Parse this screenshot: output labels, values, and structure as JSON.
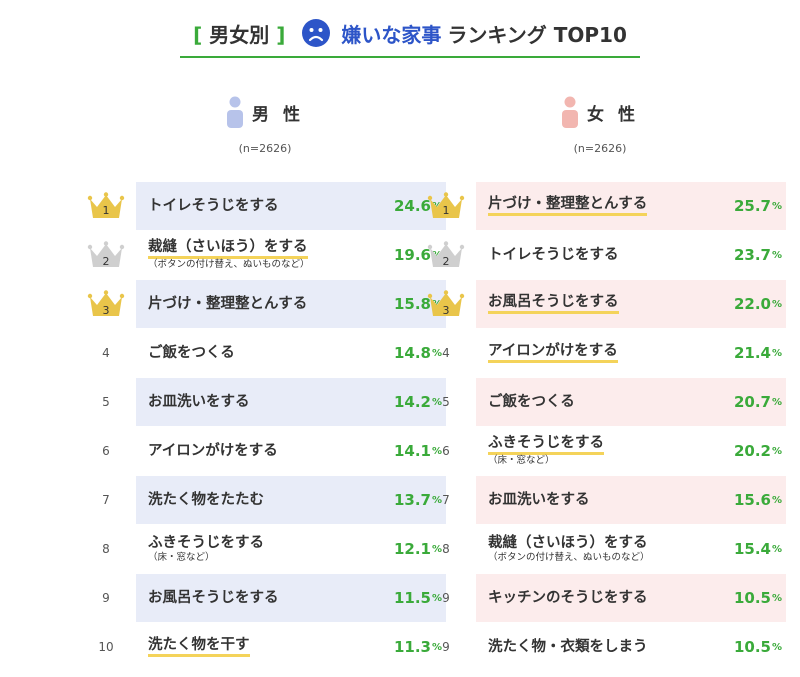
{
  "title": {
    "tag": "男女別",
    "bracket_open": "[",
    "bracket_close": "]",
    "strong": "嫌いな家事",
    "rest": "ランキング TOP10"
  },
  "colors": {
    "green": "#3aaa3a",
    "male_icon": "#b7c3ea",
    "female_icon": "#f2b6b0",
    "male_shade": "#e8ecf8",
    "female_shade": "#fcecec",
    "gold": "#e9c54a",
    "silver": "#cfcfcf",
    "highlight": "#f4d35a",
    "title_blue": "#2d55c8"
  },
  "chart_data": [
    {
      "type": "table",
      "gender": "男 性",
      "sample": "(n=2626)",
      "unit": "%",
      "rows": [
        {
          "rank": "1",
          "label": "トイレそうじをする",
          "sub": "",
          "value": 24.6,
          "medal": "gold",
          "shaded": true,
          "underline": false
        },
        {
          "rank": "2",
          "label": "裁縫（さいほう）をする",
          "sub": "（ボタンの付け替え、ぬいものなど）",
          "value": 19.6,
          "medal": "silver",
          "shaded": false,
          "underline": true
        },
        {
          "rank": "3",
          "label": "片づけ・整理整とんする",
          "sub": "",
          "value": 15.8,
          "medal": "bronze",
          "shaded": true,
          "underline": false
        },
        {
          "rank": "4",
          "label": "ご飯をつくる",
          "sub": "",
          "value": 14.8,
          "medal": "",
          "shaded": false,
          "underline": false
        },
        {
          "rank": "5",
          "label": "お皿洗いをする",
          "sub": "",
          "value": 14.2,
          "medal": "",
          "shaded": true,
          "underline": false
        },
        {
          "rank": "6",
          "label": "アイロンがけをする",
          "sub": "",
          "value": 14.1,
          "medal": "",
          "shaded": false,
          "underline": false
        },
        {
          "rank": "7",
          "label": "洗たく物をたたむ",
          "sub": "",
          "value": 13.7,
          "medal": "",
          "shaded": true,
          "underline": false
        },
        {
          "rank": "8",
          "label": "ふきそうじをする",
          "sub": "（床・窓など）",
          "value": 12.1,
          "medal": "",
          "shaded": false,
          "underline": false
        },
        {
          "rank": "9",
          "label": "お風呂そうじをする",
          "sub": "",
          "value": 11.5,
          "medal": "",
          "shaded": true,
          "underline": false
        },
        {
          "rank": "10",
          "label": "洗たく物を干す",
          "sub": "",
          "value": 11.3,
          "medal": "",
          "shaded": false,
          "underline": true
        }
      ]
    },
    {
      "type": "table",
      "gender": "女 性",
      "sample": "(n=2626)",
      "unit": "%",
      "rows": [
        {
          "rank": "1",
          "label": "片づけ・整理整とんする",
          "sub": "",
          "value": 25.7,
          "medal": "gold",
          "shaded": true,
          "underline": true
        },
        {
          "rank": "2",
          "label": "トイレそうじをする",
          "sub": "",
          "value": 23.7,
          "medal": "silver",
          "shaded": false,
          "underline": false
        },
        {
          "rank": "3",
          "label": "お風呂そうじをする",
          "sub": "",
          "value": 22.0,
          "medal": "bronze",
          "shaded": true,
          "underline": true
        },
        {
          "rank": "4",
          "label": "アイロンがけをする",
          "sub": "",
          "value": 21.4,
          "medal": "",
          "shaded": false,
          "underline": true
        },
        {
          "rank": "5",
          "label": "ご飯をつくる",
          "sub": "",
          "value": 20.7,
          "medal": "",
          "shaded": true,
          "underline": false
        },
        {
          "rank": "6",
          "label": "ふきそうじをする",
          "sub": "（床・窓など）",
          "value": 20.2,
          "medal": "",
          "shaded": false,
          "underline": true
        },
        {
          "rank": "7",
          "label": "お皿洗いをする",
          "sub": "",
          "value": 15.6,
          "medal": "",
          "shaded": true,
          "underline": false
        },
        {
          "rank": "8",
          "label": "裁縫（さいほう）をする",
          "sub": "（ボタンの付け替え、ぬいものなど）",
          "value": 15.4,
          "medal": "",
          "shaded": false,
          "underline": false
        },
        {
          "rank": "9",
          "label": "キッチンのそうじをする",
          "sub": "",
          "value": 10.5,
          "medal": "",
          "shaded": true,
          "underline": false
        },
        {
          "rank": "9",
          "label": "洗たく物・衣類をしまう",
          "sub": "",
          "value": 10.5,
          "medal": "",
          "shaded": false,
          "underline": false
        }
      ]
    }
  ]
}
